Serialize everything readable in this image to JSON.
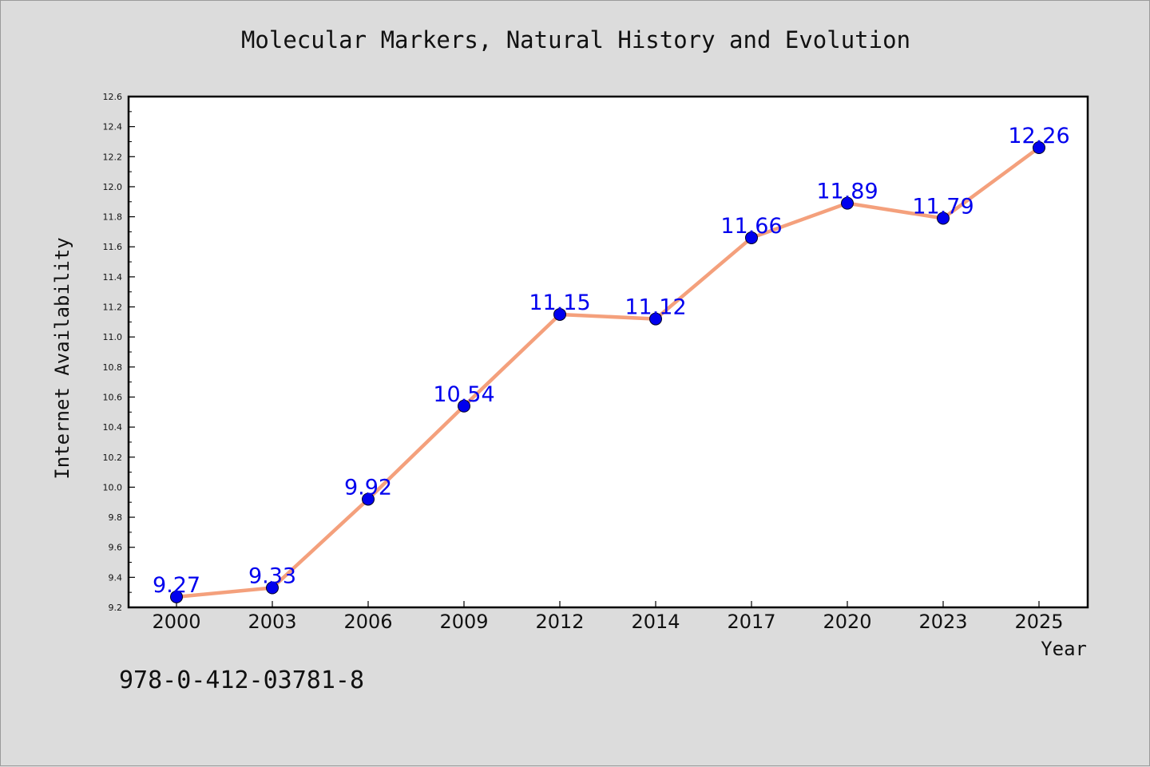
{
  "chart_data": {
    "type": "line",
    "title": "Molecular Markers, Natural History and Evolution",
    "xlabel": "Year",
    "ylabel": "Internet Availability",
    "categories": [
      "2000",
      "2003",
      "2006",
      "2009",
      "2012",
      "2014",
      "2017",
      "2020",
      "2023",
      "2025"
    ],
    "series": [
      {
        "values": [
          9.27,
          9.33,
          9.92,
          10.54,
          11.15,
          11.12,
          11.66,
          11.89,
          11.79,
          12.26
        ],
        "data_labels": [
          "9.27",
          "9.33",
          "9.92",
          "10.54",
          "11.15",
          "11.12",
          "11.66",
          "11.89",
          "11.79",
          "12.26"
        ],
        "line_color": "#f4a07c",
        "marker_color": "#0000ee"
      }
    ],
    "ylim": [
      9.2,
      12.6
    ],
    "yticks": [
      "9.2",
      "9.4",
      "9.6",
      "9.8",
      "10.0",
      "10.2",
      "10.4",
      "10.6",
      "10.8",
      "11.0",
      "11.2",
      "11.4",
      "11.6",
      "11.8",
      "12.0",
      "12.2",
      "12.4",
      "12.6"
    ],
    "grid": false,
    "legend": "none"
  },
  "footer": {
    "isbn": "978-0-412-03781-8"
  }
}
